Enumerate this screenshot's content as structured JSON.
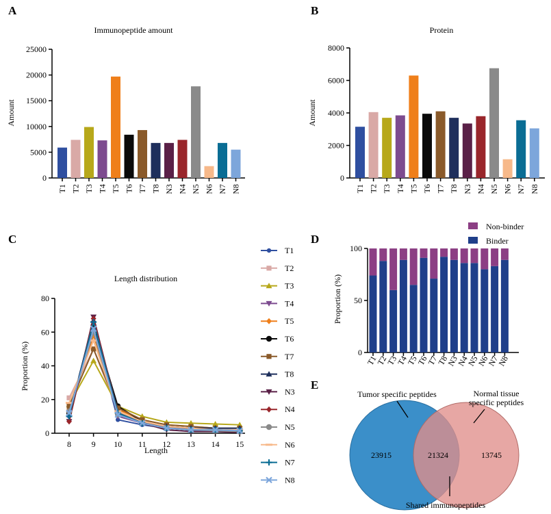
{
  "panels": {
    "a": "A",
    "b": "B",
    "c": "C",
    "d": "D",
    "e": "E"
  },
  "chart_data": [
    {
      "type": "bar",
      "panel": "A",
      "title": "Immunopeptide amount",
      "xlabel": "",
      "ylabel": "Amount",
      "ylim": [
        0,
        25000
      ],
      "yticks": [
        0,
        5000,
        10000,
        15000,
        20000,
        25000
      ],
      "categories": [
        "T1",
        "T2",
        "T3",
        "T4",
        "T5",
        "T6",
        "T7",
        "T8",
        "N3",
        "N4",
        "N5",
        "N6",
        "N7",
        "N8"
      ],
      "values": [
        5900,
        7400,
        9900,
        7300,
        19700,
        8400,
        9300,
        6800,
        6800,
        7400,
        17800,
        2300,
        6800,
        5500
      ],
      "colors": [
        "#2f4fa0",
        "#d9a9a6",
        "#b7a81a",
        "#7d4b8f",
        "#ef7f1a",
        "#0a0a0a",
        "#8a5a2a",
        "#1e2f5c",
        "#5a2047",
        "#99262b",
        "#8a8a8a",
        "#f7b98a",
        "#0a6d94",
        "#7da6db"
      ]
    },
    {
      "type": "bar",
      "panel": "B",
      "title": "Protein",
      "xlabel": "",
      "ylabel": "Amount",
      "ylim": [
        0,
        8000
      ],
      "yticks": [
        0,
        2000,
        4000,
        6000,
        8000
      ],
      "categories": [
        "T1",
        "T2",
        "T3",
        "T4",
        "T5",
        "T6",
        "T7",
        "T8",
        "N3",
        "N4",
        "N5",
        "N6",
        "N7",
        "N8"
      ],
      "values": [
        3150,
        4050,
        3700,
        3850,
        6300,
        3950,
        4100,
        3700,
        3350,
        3800,
        6750,
        1150,
        3550,
        3050
      ],
      "colors": [
        "#2f4fa0",
        "#d9a9a6",
        "#b7a81a",
        "#7d4b8f",
        "#ef7f1a",
        "#0a0a0a",
        "#8a5a2a",
        "#1e2f5c",
        "#5a2047",
        "#99262b",
        "#8a8a8a",
        "#f7b98a",
        "#0a6d94",
        "#7da6db"
      ]
    },
    {
      "type": "line",
      "panel": "C",
      "title": "Length distribution",
      "xlabel": "Length",
      "ylabel": "Proportion (%)",
      "ylim": [
        0,
        80
      ],
      "yticks": [
        0,
        20,
        40,
        60,
        80
      ],
      "xlim": [
        7.5,
        15.2
      ],
      "x": [
        8,
        9,
        10,
        11,
        12,
        13,
        14,
        15
      ],
      "legend_position": "right",
      "series": [
        {
          "name": "T1",
          "color": "#2f4fa0",
          "marker": "circle",
          "values": [
            10,
            63,
            8,
            5,
            3,
            3,
            3,
            3
          ]
        },
        {
          "name": "T2",
          "color": "#d9a9a6",
          "marker": "square",
          "values": [
            21,
            50,
            13,
            7,
            4,
            3,
            2,
            1
          ]
        },
        {
          "name": "T3",
          "color": "#b7a81a",
          "marker": "triangle-up",
          "values": [
            17,
            43,
            16,
            10,
            6.5,
            6,
            5.5,
            5
          ]
        },
        {
          "name": "T4",
          "color": "#7d4b8f",
          "marker": "triangle-down",
          "values": [
            12,
            65,
            10,
            6,
            3,
            2,
            1.5,
            1
          ]
        },
        {
          "name": "T5",
          "color": "#ef7f1a",
          "marker": "diamond",
          "values": [
            14,
            58,
            14,
            8,
            5,
            4,
            3,
            3
          ]
        },
        {
          "name": "T6",
          "color": "#0a0a0a",
          "marker": "circle-big",
          "values": [
            12,
            64,
            16,
            7,
            3,
            2,
            1.5,
            1
          ]
        },
        {
          "name": "T7",
          "color": "#8a5a2a",
          "marker": "square",
          "values": [
            16,
            50,
            15,
            8,
            5,
            4,
            3,
            3
          ]
        },
        {
          "name": "T8",
          "color": "#1e2f5c",
          "marker": "triangle-up",
          "values": [
            11,
            67,
            13,
            6,
            4,
            3,
            3,
            3
          ]
        },
        {
          "name": "N3",
          "color": "#5a2047",
          "marker": "triangle-down",
          "values": [
            7,
            69,
            12,
            6,
            2,
            1,
            1,
            0.5
          ]
        },
        {
          "name": "N4",
          "color": "#99262b",
          "marker": "diamond",
          "values": [
            7,
            68,
            12,
            6,
            3,
            2,
            1.5,
            1
          ]
        },
        {
          "name": "N5",
          "color": "#8a8a8a",
          "marker": "circle-big",
          "values": [
            13,
            60,
            11,
            6,
            3,
            2,
            1.5,
            1
          ]
        },
        {
          "name": "N6",
          "color": "#f7b98a",
          "marker": "dash",
          "values": [
            18,
            55,
            13,
            7,
            4,
            3,
            2,
            2
          ]
        },
        {
          "name": "N7",
          "color": "#0a6d94",
          "marker": "plus",
          "values": [
            10,
            66,
            12,
            6,
            3,
            2,
            2,
            1.5
          ]
        },
        {
          "name": "N8",
          "color": "#7da6db",
          "marker": "x",
          "values": [
            12,
            62,
            11,
            6,
            3,
            2,
            2,
            1.5
          ]
        }
      ]
    },
    {
      "type": "bar",
      "stacked": true,
      "panel": "D",
      "xlabel": "",
      "ylabel": "Proportion (%)",
      "ylim": [
        0,
        100
      ],
      "yticks": [
        0,
        50,
        100
      ],
      "legend_position": "top",
      "categories": [
        "T1",
        "T2",
        "T3",
        "T4",
        "T5",
        "T6",
        "T7",
        "T8",
        "N3",
        "N4",
        "N5",
        "N6",
        "N7",
        "N8"
      ],
      "series": [
        {
          "name": "Binder",
          "color": "#1f3f8a",
          "values": [
            74,
            88,
            60,
            89,
            65,
            91,
            71,
            92,
            89,
            86,
            86,
            80,
            83,
            89
          ]
        },
        {
          "name": "Non-binder",
          "color": "#8c3f84",
          "values": [
            26,
            12,
            40,
            11,
            35,
            9,
            29,
            8,
            11,
            14,
            14,
            20,
            17,
            11
          ]
        }
      ],
      "legend_order": [
        "Non-binder",
        "Binder"
      ]
    },
    {
      "type": "venn",
      "panel": "E",
      "sets": [
        {
          "name": "Tumor specific peptides",
          "color": "#3b8fc9",
          "only": 23915
        },
        {
          "name": "Normal tissue specific peptides",
          "color": "#e08e8a",
          "only": 13745
        }
      ],
      "intersection": 21324,
      "labels": {
        "left": "Tumor specific peptides",
        "right_line1": "Normal tissue",
        "right_line2": "specific peptides",
        "shared": "Shared immunopeptides"
      }
    }
  ]
}
